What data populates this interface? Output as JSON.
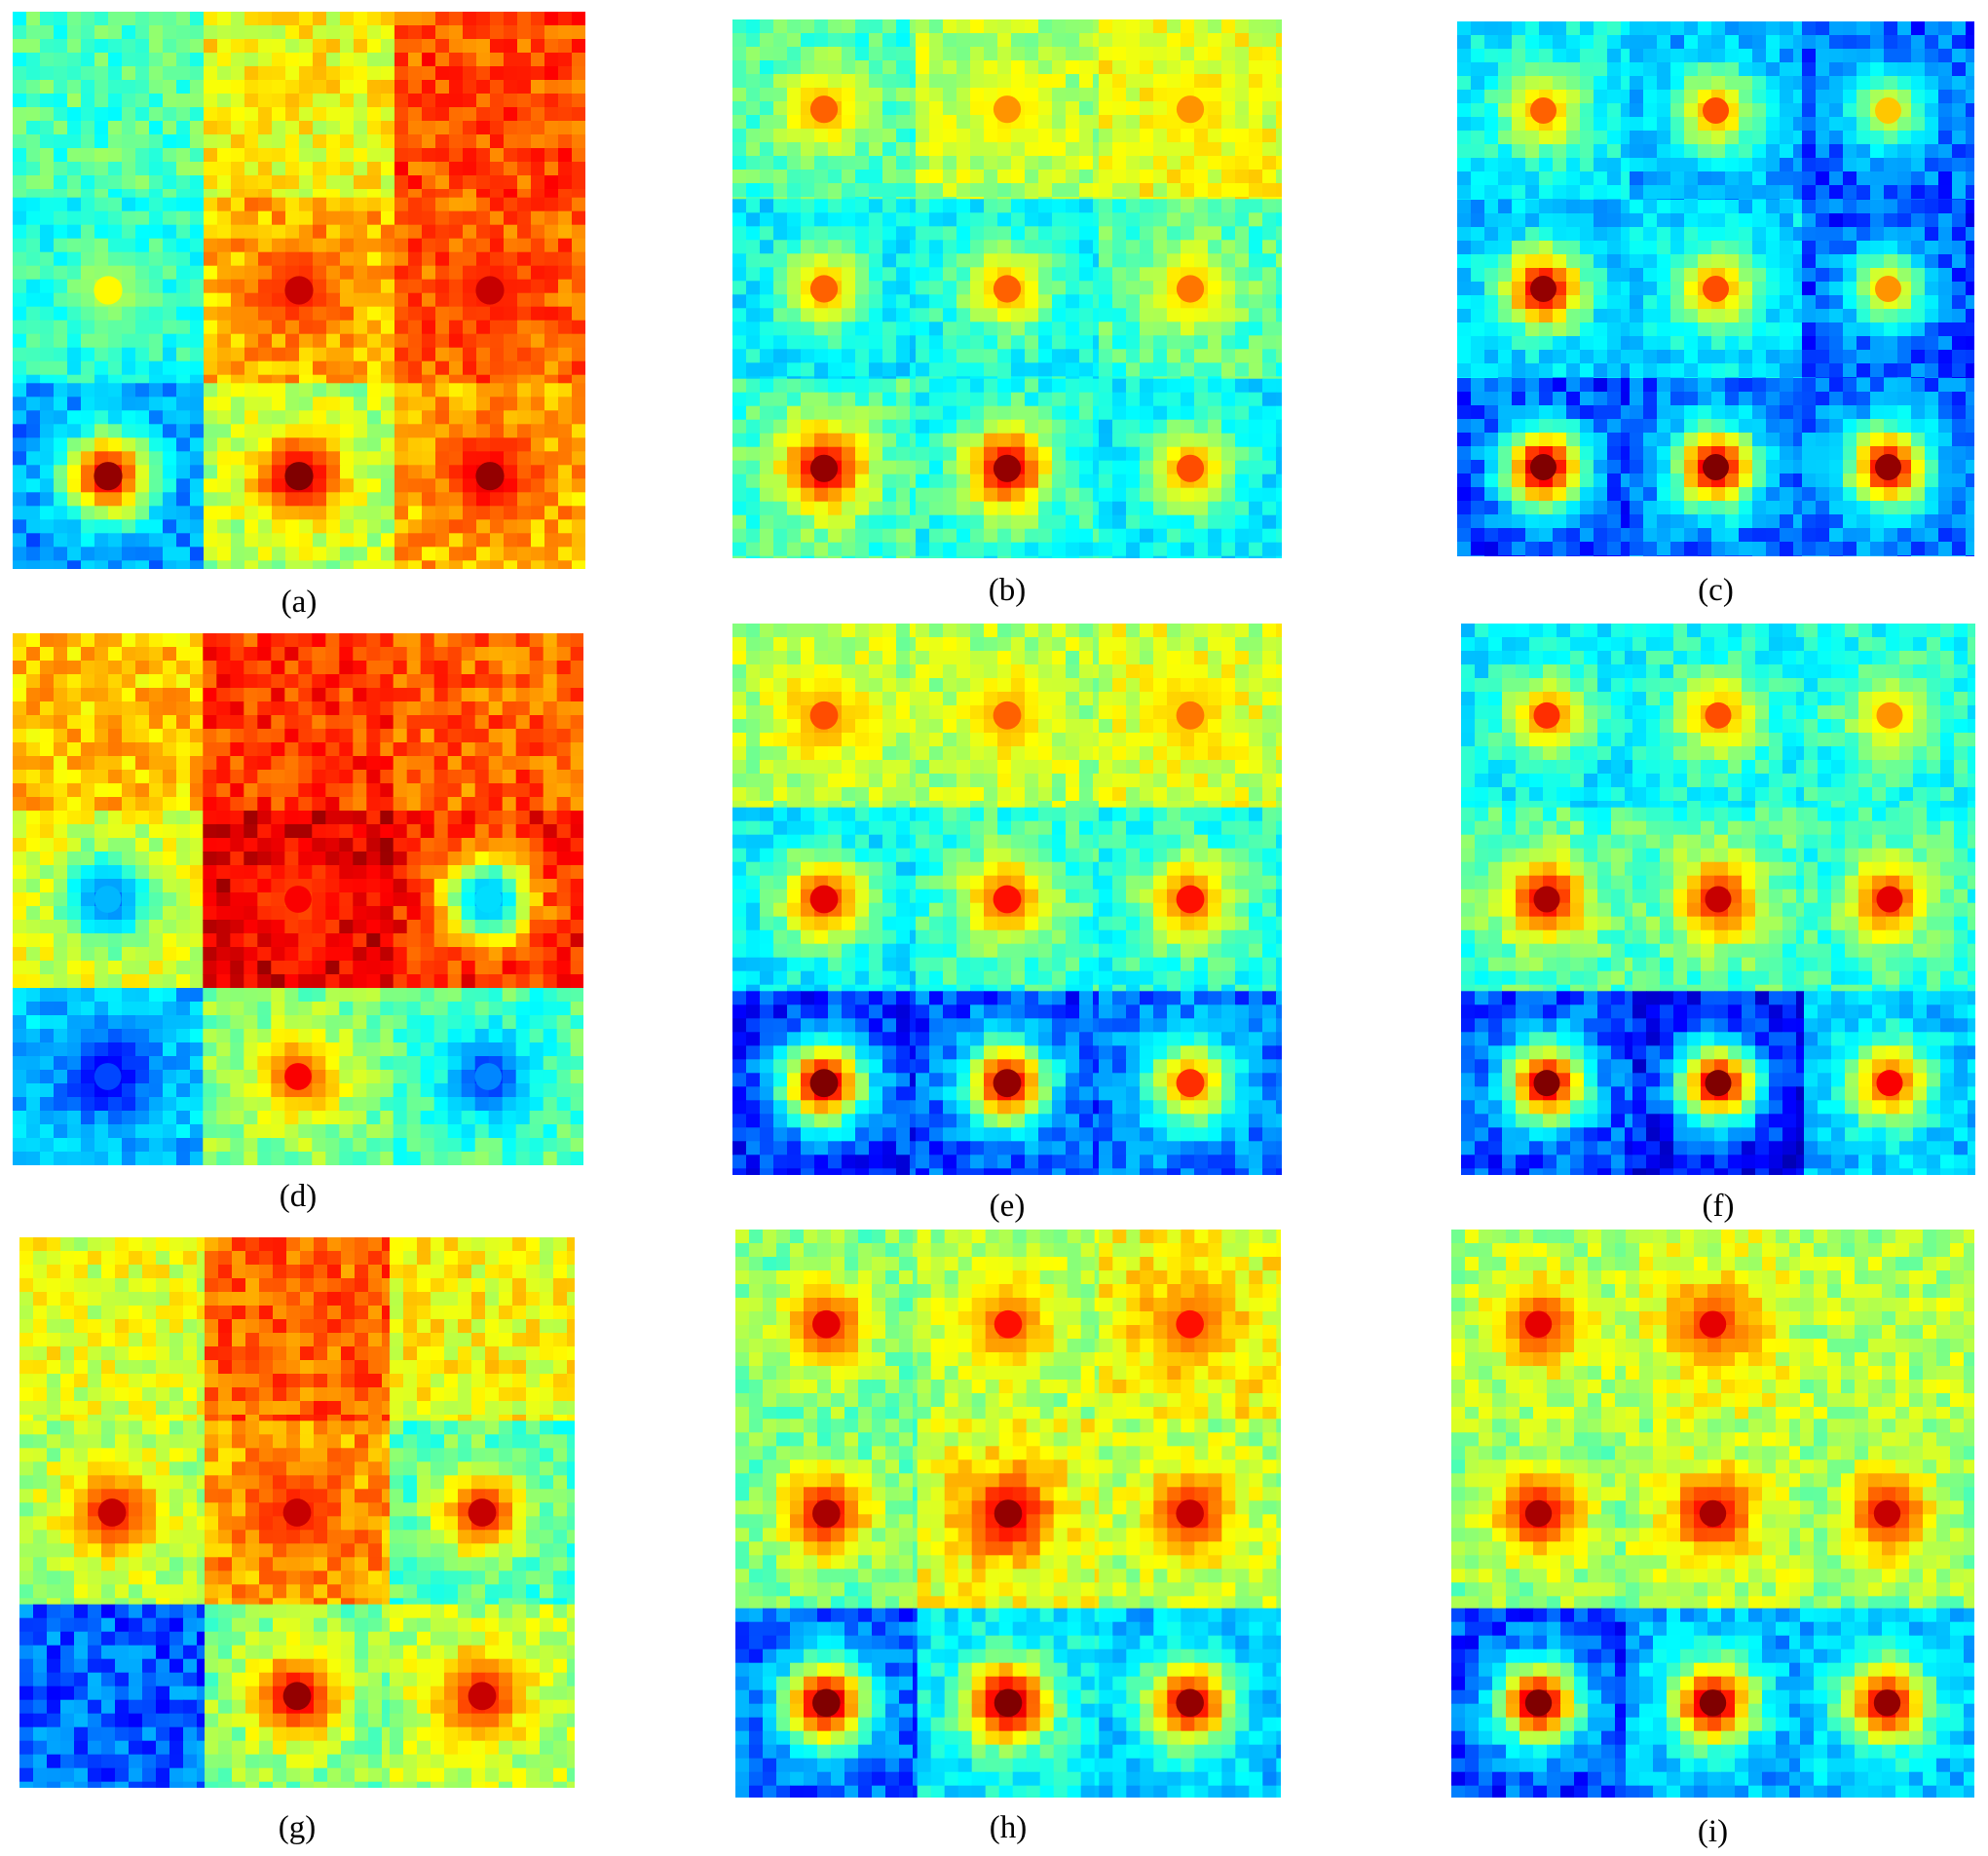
{
  "figure": {
    "panels": [
      {
        "id": "a",
        "caption": "(a)"
      },
      {
        "id": "b",
        "caption": "(b)"
      },
      {
        "id": "c",
        "caption": "(c)"
      },
      {
        "id": "d",
        "caption": "(d)"
      },
      {
        "id": "e",
        "caption": "(e)"
      },
      {
        "id": "f",
        "caption": "(f)"
      },
      {
        "id": "g",
        "caption": "(g)"
      },
      {
        "id": "h",
        "caption": "(h)"
      },
      {
        "id": "i",
        "caption": "(i)"
      }
    ],
    "colormap": [
      "#00008f",
      "#0000ff",
      "#00a0ff",
      "#00ffff",
      "#80ff80",
      "#ffff00",
      "#ff8000",
      "#ff0000",
      "#800000"
    ]
  }
}
